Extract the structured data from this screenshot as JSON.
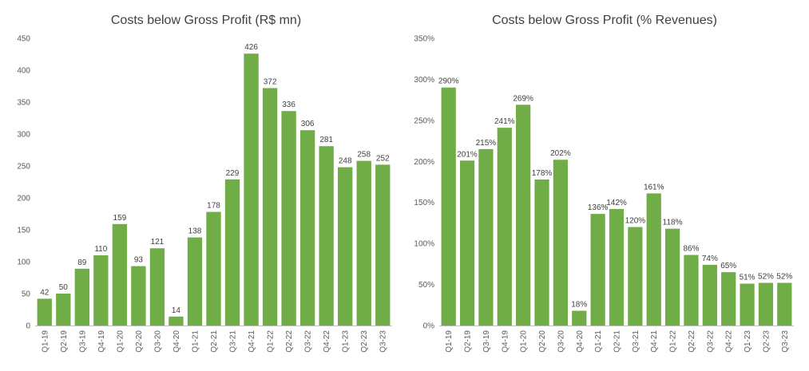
{
  "chart_data": [
    {
      "type": "bar",
      "title": "Costs below Gross Profit (R$ mn)",
      "xlabel": "",
      "ylabel": "",
      "ylim": [
        0,
        450
      ],
      "yticks": [
        0,
        50,
        100,
        150,
        200,
        250,
        300,
        350,
        400,
        450
      ],
      "ytick_labels": [
        "0",
        "50",
        "100",
        "150",
        "200",
        "250",
        "300",
        "350",
        "400",
        "450"
      ],
      "grid": false,
      "bar_color": "#70ad47",
      "categories": [
        "Q1-19",
        "Q2-19",
        "Q3-19",
        "Q4-19",
        "Q1-20",
        "Q2-20",
        "Q3-20",
        "Q4-20",
        "Q1-21",
        "Q2-21",
        "Q3-21",
        "Q4-21",
        "Q1-22",
        "Q2-22",
        "Q3-22",
        "Q4-22",
        "Q1-23",
        "Q2-23",
        "Q3-23"
      ],
      "values": [
        42,
        50,
        89,
        110,
        159,
        93,
        121,
        14,
        138,
        178,
        229,
        426,
        372,
        336,
        306,
        281,
        248,
        258,
        252
      ],
      "data_labels": [
        "42",
        "50",
        "89",
        "110",
        "159",
        "93",
        "121",
        "14",
        "138",
        "178",
        "229",
        "426",
        "372",
        "336",
        "306",
        "281",
        "248",
        "258",
        "252"
      ]
    },
    {
      "type": "bar",
      "title": "Costs below Gross Profit (% Revenues)",
      "xlabel": "",
      "ylabel": "",
      "ylim": [
        0,
        350
      ],
      "yticks": [
        0,
        50,
        100,
        150,
        200,
        250,
        300,
        350
      ],
      "ytick_labels": [
        "0%",
        "50%",
        "100%",
        "150%",
        "200%",
        "250%",
        "300%",
        "350%"
      ],
      "grid": false,
      "bar_color": "#70ad47",
      "categories": [
        "Q1-19",
        "Q2-19",
        "Q3-19",
        "Q4-19",
        "Q1-20",
        "Q2-20",
        "Q3-20",
        "Q4-20",
        "Q1-21",
        "Q2-21",
        "Q3-21",
        "Q4-21",
        "Q1-22",
        "Q2-22",
        "Q3-22",
        "Q4-22",
        "Q1-23",
        "Q2-23",
        "Q3-23"
      ],
      "values": [
        290,
        201,
        215,
        241,
        269,
        178,
        202,
        18,
        136,
        142,
        120,
        161,
        118,
        86,
        74,
        65,
        51,
        52,
        52
      ],
      "data_labels": [
        "290%",
        "201%",
        "215%",
        "241%",
        "269%",
        "178%",
        "202%",
        "18%",
        "136%",
        "142%",
        "120%",
        "161%",
        "118%",
        "86%",
        "74%",
        "65%",
        "51%",
        "52%",
        "52%"
      ]
    }
  ]
}
